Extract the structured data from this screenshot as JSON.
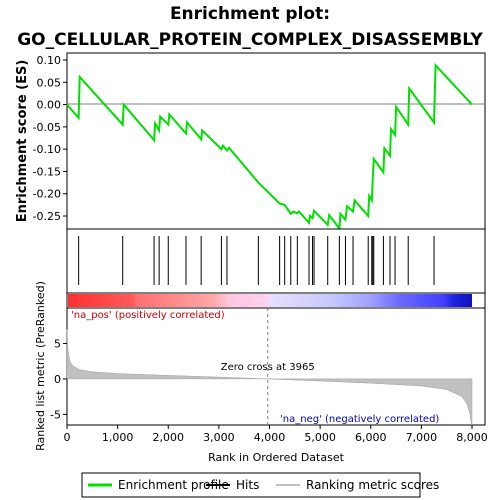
{
  "chart_data": {
    "type": "line",
    "title_line1": "Enrichment plot:",
    "title_line2": "GO_CELLULAR_PROTEIN_COMPLEX_DISASSEMBLY",
    "es_panel": {
      "ylabel": "Enrichment score (ES)",
      "ylim": [
        -0.3,
        0.1
      ],
      "yticks": [
        "0.10",
        "0.05",
        "0.00",
        "-0.05",
        "-0.10",
        "-0.15",
        "-0.20",
        "-0.25"
      ],
      "ytick_values": [
        0.1,
        0.05,
        0.0,
        -0.05,
        -0.1,
        -0.15,
        -0.2,
        -0.25
      ],
      "line_color": "#00e000",
      "points": [
        [
          0,
          0.0
        ],
        [
          230,
          -0.03
        ],
        [
          250,
          0.062
        ],
        [
          1100,
          -0.045
        ],
        [
          1120,
          0.0
        ],
        [
          1720,
          -0.08
        ],
        [
          1740,
          -0.042
        ],
        [
          1820,
          -0.058
        ],
        [
          1840,
          -0.027
        ],
        [
          2000,
          -0.045
        ],
        [
          2020,
          -0.022
        ],
        [
          2350,
          -0.065
        ],
        [
          2370,
          -0.04
        ],
        [
          2650,
          -0.078
        ],
        [
          2670,
          -0.058
        ],
        [
          3050,
          -0.1
        ],
        [
          3080,
          -0.092
        ],
        [
          3160,
          -0.103
        ],
        [
          3200,
          -0.097
        ],
        [
          3780,
          -0.175
        ],
        [
          4200,
          -0.222
        ],
        [
          4300,
          -0.225
        ],
        [
          4420,
          -0.245
        ],
        [
          4470,
          -0.24
        ],
        [
          4550,
          -0.244
        ],
        [
          4580,
          -0.24
        ],
        [
          4780,
          -0.265
        ],
        [
          4800,
          -0.25
        ],
        [
          4850,
          -0.255
        ],
        [
          4880,
          -0.238
        ],
        [
          5150,
          -0.27
        ],
        [
          5180,
          -0.248
        ],
        [
          5380,
          -0.278
        ],
        [
          5400,
          -0.245
        ],
        [
          5500,
          -0.258
        ],
        [
          5530,
          -0.228
        ],
        [
          5650,
          -0.24
        ],
        [
          5680,
          -0.215
        ],
        [
          5950,
          -0.25
        ],
        [
          5970,
          -0.205
        ],
        [
          6020,
          -0.215
        ],
        [
          6040,
          -0.165
        ],
        [
          6060,
          -0.122
        ],
        [
          6250,
          -0.152
        ],
        [
          6270,
          -0.098
        ],
        [
          6380,
          -0.115
        ],
        [
          6400,
          -0.055
        ],
        [
          6480,
          -0.068
        ],
        [
          6500,
          -0.005
        ],
        [
          6740,
          -0.045
        ],
        [
          6760,
          0.036
        ],
        [
          7250,
          -0.04
        ],
        [
          7280,
          0.088
        ],
        [
          8000,
          0.0
        ]
      ]
    },
    "hits": [
      230,
      1100,
      1720,
      1820,
      2000,
      2350,
      2650,
      3050,
      3160,
      3780,
      4200,
      4300,
      4420,
      4550,
      4780,
      4850,
      4880,
      5150,
      5380,
      5500,
      5650,
      5950,
      6020,
      6040,
      6060,
      6250,
      6380,
      6480,
      6740,
      7250
    ],
    "rank_panel": {
      "ylabel": "Ranked list metric (PreRanked)",
      "xlabel": "Rank in Ordered Dataset",
      "xlim": [
        0,
        8000
      ],
      "ylim": [
        -6.5,
        10
      ],
      "yticks": [
        "5",
        "0",
        "-5"
      ],
      "ytick_values": [
        5,
        0,
        -5
      ],
      "xticks": [
        "0",
        "1,000",
        "2,000",
        "3,000",
        "4,000",
        "5,000",
        "6,000",
        "7,000",
        "8,000"
      ],
      "xtick_values": [
        0,
        1000,
        2000,
        3000,
        4000,
        5000,
        6000,
        7000,
        8000
      ],
      "zero_cross": 3965,
      "metric_curve": [
        [
          0,
          7.0
        ],
        [
          20,
          4.0
        ],
        [
          60,
          2.4
        ],
        [
          120,
          1.8
        ],
        [
          250,
          1.3
        ],
        [
          500,
          1.0
        ],
        [
          1000,
          0.75
        ],
        [
          2000,
          0.5
        ],
        [
          3000,
          0.25
        ],
        [
          3965,
          0.0
        ],
        [
          5000,
          -0.3
        ],
        [
          6000,
          -0.6
        ],
        [
          7000,
          -1.0
        ],
        [
          7500,
          -1.5
        ],
        [
          7800,
          -2.5
        ],
        [
          7900,
          -3.5
        ],
        [
          7960,
          -5.0
        ],
        [
          7990,
          -6.5
        ],
        [
          8000,
          -6.5
        ]
      ]
    },
    "annotations": {
      "pos": "'na_pos' (positively correlated)",
      "neg": "'na_neg' (negatively correlated)",
      "zero": "Zero cross at 3965"
    },
    "legend": [
      {
        "label": "Enrichment profile",
        "color": "#00e000"
      },
      {
        "label": "Hits",
        "color": "#000000"
      },
      {
        "label": "Ranking metric scores",
        "color": "#c0c0c0"
      }
    ]
  }
}
